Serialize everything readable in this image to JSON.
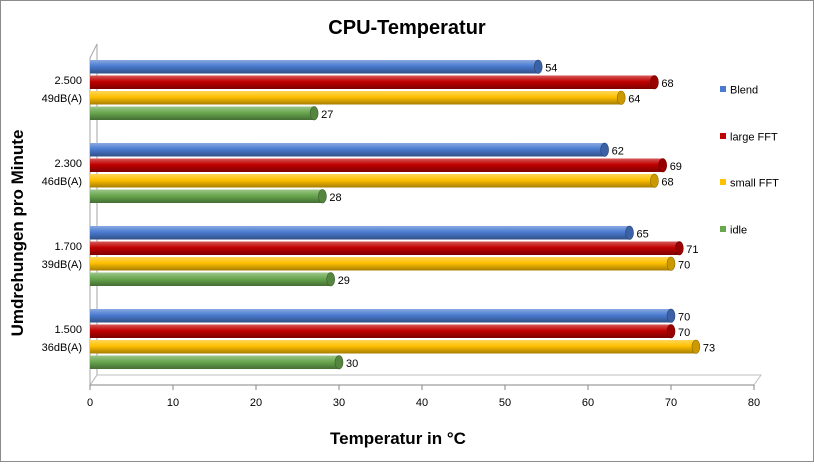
{
  "chart_data": {
    "type": "bar",
    "orientation": "horizontal",
    "title": "CPU-Temperatur",
    "xlabel": "Temperatur  in °C",
    "ylabel": "Umdrehungen pro Minute",
    "xlim": [
      0,
      80
    ],
    "xticks": [
      0,
      10,
      20,
      30,
      40,
      50,
      60,
      70,
      80
    ],
    "grid": false,
    "legend_position": "right",
    "categories": [
      [
        "2.500",
        "49dB(A)"
      ],
      [
        "2.300",
        "46dB(A)"
      ],
      [
        "1.700",
        "39dB(A)"
      ],
      [
        "1.500",
        "36dB(A)"
      ]
    ],
    "series": [
      {
        "name": "Blend",
        "color": "#4a7bd0",
        "values": [
          54,
          62,
          65,
          70
        ]
      },
      {
        "name": "large FFT",
        "color": "#c00000",
        "values": [
          68,
          69,
          71,
          70
        ]
      },
      {
        "name": "small FFT",
        "color": "#ffc000",
        "values": [
          64,
          68,
          70,
          73
        ]
      },
      {
        "name": "idle",
        "color": "#6aa84f",
        "values": [
          27,
          28,
          29,
          30
        ]
      }
    ]
  }
}
